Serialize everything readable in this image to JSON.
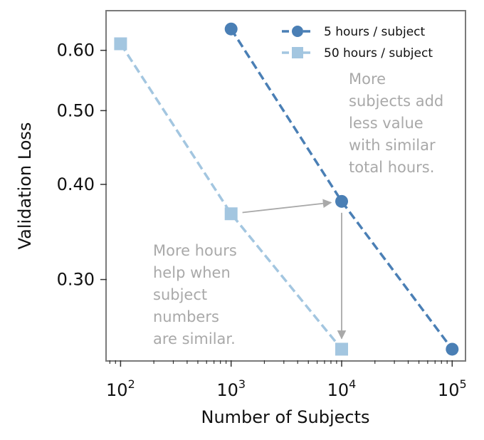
{
  "chart_data": {
    "type": "line",
    "title": "",
    "xlabel": "Number of Subjects",
    "ylabel": "Validation Loss",
    "x_scale": "log",
    "y_scale": "log",
    "xlim": [
      75,
      130000
    ],
    "ylim": [
      0.235,
      0.675
    ],
    "x_ticks": [
      {
        "value": 100,
        "base": "10",
        "exp": "2"
      },
      {
        "value": 1000,
        "base": "10",
        "exp": "3"
      },
      {
        "value": 10000,
        "base": "10",
        "exp": "4"
      },
      {
        "value": 100000,
        "base": "10",
        "exp": "5"
      }
    ],
    "y_ticks": [
      {
        "value": 0.3,
        "label": "0.30"
      },
      {
        "value": 0.4,
        "label": "0.40"
      },
      {
        "value": 0.5,
        "label": "0.50"
      },
      {
        "value": 0.6,
        "label": "0.60"
      }
    ],
    "grid": false,
    "legend": "top-right",
    "series": [
      {
        "name": "5 hours / subject",
        "marker": "circle",
        "color": "#4a7fb5",
        "x": [
          1000,
          10000,
          100000
        ],
        "y": [
          0.64,
          0.38,
          0.243
        ]
      },
      {
        "name": "50 hours / subject",
        "marker": "square",
        "color": "#a3c6e0",
        "x": [
          100,
          1000,
          10000
        ],
        "y": [
          0.612,
          0.366,
          0.243
        ]
      }
    ],
    "annotations": [
      {
        "lines": [
          "More",
          "subjects add",
          "less value",
          "with similar",
          "total hours."
        ],
        "arrow_from": [
          1000,
          0.366
        ],
        "arrow_to": [
          10000,
          0.38
        ]
      },
      {
        "lines": [
          "More hours",
          "help when",
          "subject",
          "numbers",
          "are similar."
        ],
        "arrow_from": [
          10000,
          0.38
        ],
        "arrow_to": [
          10000,
          0.243
        ]
      }
    ],
    "annotation_color": "#a9a9a9"
  }
}
